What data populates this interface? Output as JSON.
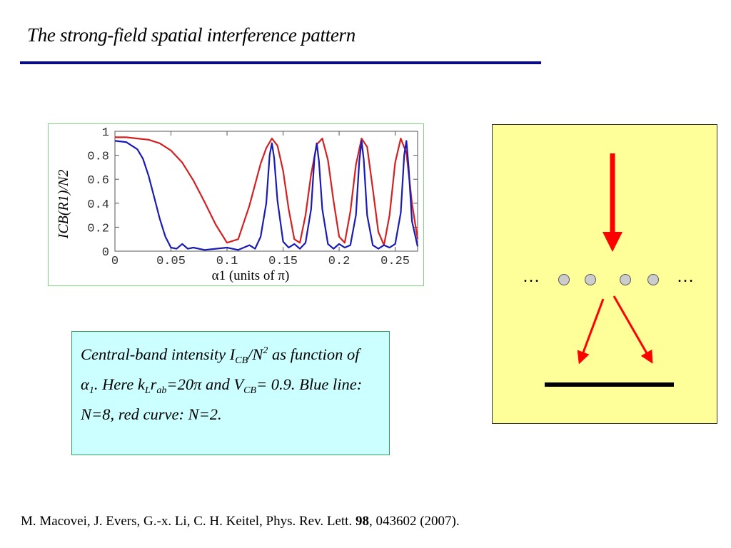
{
  "slide": {
    "title": "The strong-field spatial interference pattern",
    "reference_prefix": "M. Macovei, J. Evers, G.-x. Li, C. H. Keitel, Phys. Rev. Lett.",
    "reference_volume": "98",
    "reference_suffix": ", 043602 (2007)."
  },
  "caption": {
    "t1": "Central-band intensity I",
    "s1": "CB",
    "t2": "/N",
    "p1": "2",
    "t3": " as function of  α",
    "s2": "1",
    "t4": ". Here k",
    "s3": "L",
    "t5": "r",
    "s4": "ab",
    "t6": "=20π and V",
    "s5": "CB",
    "t7": "= 0.9. Blue line: N=8, red curve: N=2."
  },
  "diagram": {
    "ellipsis_left": "…",
    "ellipsis_right": "…",
    "arrow_color": "#ff0000",
    "atom_color": "#cccccc"
  },
  "chart_data": {
    "type": "line",
    "title": "",
    "xlabel": "α1 (units of π)",
    "ylabel": "ICB(R1)/N2",
    "xlim": [
      0,
      0.27
    ],
    "ylim": [
      0,
      1
    ],
    "xticks": [
      "0",
      "0.05",
      "0.1",
      "0.15",
      "0.2",
      "0.25"
    ],
    "yticks": [
      "0",
      "0.2",
      "0.4",
      "0.6",
      "0.8",
      "1"
    ],
    "grid": false,
    "series": [
      {
        "color": "#d42020",
        "x": [
          0,
          0.01,
          0.02,
          0.03,
          0.04,
          0.05,
          0.06,
          0.07,
          0.08,
          0.09,
          0.1,
          0.11,
          0.12,
          0.13,
          0.135,
          0.14,
          0.145,
          0.15,
          0.155,
          0.16,
          0.165,
          0.17,
          0.175,
          0.18,
          0.185,
          0.19,
          0.195,
          0.2,
          0.205,
          0.21,
          0.215,
          0.22,
          0.225,
          0.23,
          0.235,
          0.24,
          0.245,
          0.25,
          0.255,
          0.26,
          0.265,
          0.27
        ],
        "y": [
          0.95,
          0.95,
          0.94,
          0.93,
          0.9,
          0.84,
          0.74,
          0.59,
          0.41,
          0.22,
          0.07,
          0.1,
          0.38,
          0.73,
          0.86,
          0.94,
          0.88,
          0.67,
          0.35,
          0.1,
          0.07,
          0.3,
          0.64,
          0.89,
          0.94,
          0.76,
          0.42,
          0.12,
          0.07,
          0.33,
          0.72,
          0.94,
          0.87,
          0.52,
          0.16,
          0.05,
          0.3,
          0.74,
          0.94,
          0.82,
          0.4,
          0.1
        ]
      },
      {
        "color": "#1a1ab4",
        "x": [
          0,
          0.01,
          0.02,
          0.025,
          0.03,
          0.035,
          0.04,
          0.045,
          0.05,
          0.055,
          0.06,
          0.065,
          0.07,
          0.08,
          0.09,
          0.1,
          0.11,
          0.12,
          0.125,
          0.13,
          0.135,
          0.138,
          0.14,
          0.142,
          0.145,
          0.15,
          0.155,
          0.16,
          0.165,
          0.17,
          0.175,
          0.178,
          0.18,
          0.182,
          0.185,
          0.19,
          0.195,
          0.2,
          0.205,
          0.21,
          0.215,
          0.218,
          0.22,
          0.222,
          0.225,
          0.23,
          0.235,
          0.24,
          0.245,
          0.25,
          0.255,
          0.258,
          0.26,
          0.262,
          0.265,
          0.27
        ],
        "y": [
          0.92,
          0.91,
          0.85,
          0.77,
          0.63,
          0.45,
          0.27,
          0.12,
          0.03,
          0.02,
          0.06,
          0.02,
          0.03,
          0.01,
          0.02,
          0.03,
          0.01,
          0.05,
          0.02,
          0.12,
          0.4,
          0.8,
          0.9,
          0.78,
          0.42,
          0.08,
          0.03,
          0.06,
          0.02,
          0.07,
          0.35,
          0.78,
          0.9,
          0.75,
          0.35,
          0.06,
          0.02,
          0.06,
          0.03,
          0.05,
          0.3,
          0.75,
          0.92,
          0.76,
          0.3,
          0.05,
          0.02,
          0.05,
          0.03,
          0.06,
          0.32,
          0.8,
          0.92,
          0.7,
          0.25,
          0.04
        ]
      }
    ]
  }
}
